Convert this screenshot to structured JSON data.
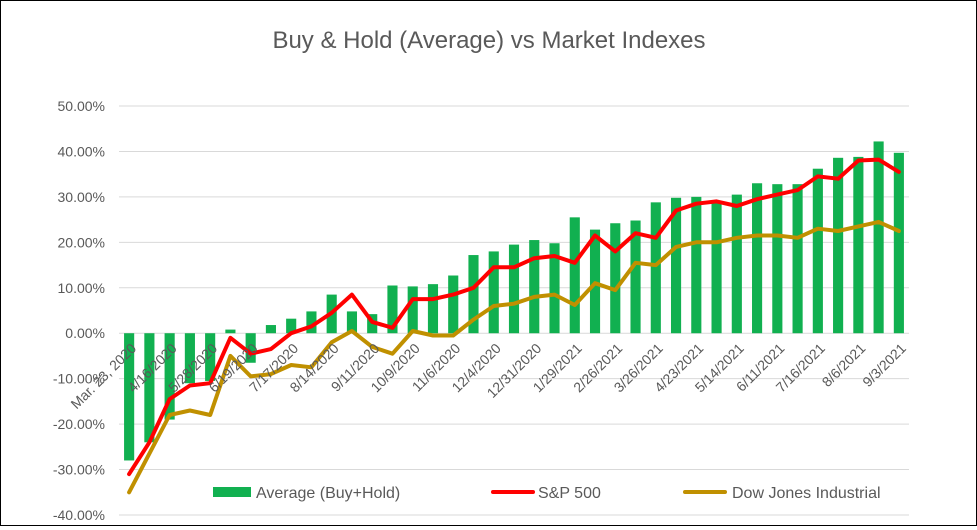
{
  "chart_data": {
    "type": "bar",
    "title": "Buy & Hold (Average) vs  Market Indexes",
    "xlabel": "",
    "ylabel": "",
    "ylim": [
      -40,
      50
    ],
    "yticks": [
      "-40.00%",
      "-30.00%",
      "-20.00%",
      "-10.00%",
      "0.00%",
      "10.00%",
      "20.00%",
      "30.00%",
      "40.00%",
      "50.00%"
    ],
    "grid": true,
    "legend_position": "bottom",
    "x_tick_labels": [
      "Mar. 23, 2020",
      "4/16/2020",
      "5/28/2020",
      "6/19/2020",
      "7/17/2020",
      "8/14/2020",
      "9/11/2020",
      "10/9/2020",
      "11/6/2020",
      "12/4/2020",
      "12/31/2020",
      "1/29/2021",
      "2/26/2021",
      "3/26/2021",
      "4/23/2021",
      "5/14/2021",
      "6/11/2021",
      "7/16/2021",
      "8/6/2021",
      "9/3/2021"
    ],
    "series": [
      {
        "name": "Average (Buy+Hold)",
        "type": "bar",
        "color": "#11b050",
        "values": [
          -28,
          -24,
          -19,
          -11,
          -10.5,
          0.8,
          -6.5,
          1.8,
          3.2,
          4.8,
          8.5,
          4.8,
          4.2,
          10.5,
          10.3,
          10.8,
          12.7,
          17.2,
          18,
          19.5,
          20.5,
          19.8,
          25.5,
          22.8,
          24.2,
          24.8,
          28.8,
          29.8,
          30,
          29,
          30.5,
          33,
          32.8,
          32.8,
          36.2,
          38.6,
          38.8,
          42.2,
          39.7
        ]
      },
      {
        "name": "S&P 500",
        "type": "line",
        "color": "#ff0000",
        "values": [
          -31,
          -24,
          -14.5,
          -11.5,
          -11,
          -1,
          -4.5,
          -3.5,
          0,
          1.5,
          4.5,
          8.5,
          2.5,
          1.2,
          7.5,
          7.5,
          8.5,
          10,
          14.5,
          14.5,
          16.5,
          17,
          15.5,
          21.5,
          18,
          22,
          21,
          27,
          28.5,
          29,
          28,
          29.5,
          30.5,
          31.5,
          34.5,
          34,
          38,
          38.2,
          35.5
        ]
      },
      {
        "name": "Dow Jones Industrial",
        "type": "line",
        "color": "#c09000",
        "values": [
          -35,
          -26.5,
          -18,
          -17,
          -18,
          -5,
          -9.5,
          -9,
          -7,
          -7.5,
          -2,
          0.5,
          -3,
          -4.5,
          0.5,
          -0.5,
          -0.5,
          3,
          6,
          6.5,
          8,
          8.5,
          6.2,
          11,
          9.5,
          15.5,
          15,
          19,
          20,
          20,
          21,
          21.5,
          21.5,
          21,
          23,
          22.5,
          23.5,
          24.5,
          22.5
        ]
      }
    ]
  }
}
